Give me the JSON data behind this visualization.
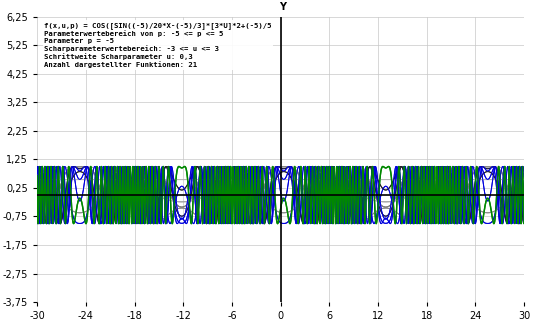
{
  "info_lines": [
    "f(x,u,p) = COS([SIN((-5)/20*X-(-5)/3]*[3*U]*2+(-5)/5",
    "Parameterwertebereich von p: -5 <= p <= 5",
    "Parameter p = -5",
    "Scharparameterwertebereich: -3 <= u <= 3",
    "Schrittweite Scharparameter u: 0,3",
    "Anzahl dargestellter Funktionen: 21"
  ],
  "p": -5,
  "u_min": -3,
  "u_max": 3,
  "u_step": 0.3,
  "x_min": -30,
  "x_max": 30,
  "y_min": -3.75,
  "y_max": 6.25,
  "x_ticks": [
    -30,
    -24,
    -18,
    -12,
    -6,
    0,
    6,
    12,
    18,
    24,
    30
  ],
  "y_ticks": [
    -3.75,
    -2.75,
    -1.75,
    -0.75,
    0.25,
    1.25,
    2.25,
    3.25,
    4.25,
    5.25,
    6.25
  ],
  "background_color": "#ffffff",
  "grid_color": "#c8c8c8",
  "plot_bg": "#ffffff",
  "outer_color": "#008800",
  "blue_color": "#0000dd",
  "dark_color": "#222222",
  "gray_color": "#888888",
  "light_gray_color": "#aaaaaa"
}
